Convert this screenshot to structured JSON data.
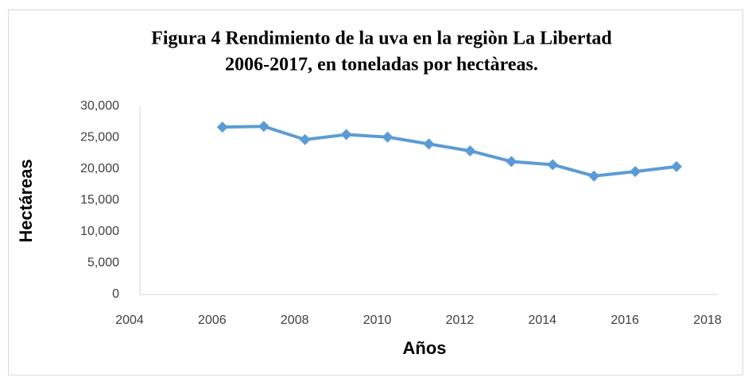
{
  "chart_data": {
    "type": "line",
    "title": [
      "Figura 4 Rendimiento de la uva en la regiòn La Libertad",
      "2006-2017, en toneladas por hectàreas."
    ],
    "x_label": "Años",
    "y_label": "Hectáreas",
    "x": [
      2006,
      2007,
      2008,
      2009,
      2010,
      2011,
      2012,
      2013,
      2014,
      2015,
      2016,
      2017
    ],
    "values": [
      26700,
      26800,
      24700,
      25500,
      25100,
      24000,
      22900,
      21200,
      20700,
      18900,
      19600,
      20400
    ],
    "color": "#5b9bd5",
    "xlim": [
      2004,
      2018
    ],
    "xticks": [
      2004,
      2006,
      2008,
      2010,
      2012,
      2014,
      2016,
      2018
    ],
    "ylim": [
      0,
      30000
    ],
    "yticks": [
      0,
      {
        "value": 5000,
        "label": "5,000"
      },
      {
        "value": 10000,
        "label": "10,000"
      },
      {
        "value": 15000,
        "label": "15,000"
      },
      {
        "value": 20000,
        "label": "20,000"
      },
      {
        "value": 25000,
        "label": "25,000"
      },
      {
        "value": 30000,
        "label": "30,000"
      }
    ],
    "grid": false
  }
}
